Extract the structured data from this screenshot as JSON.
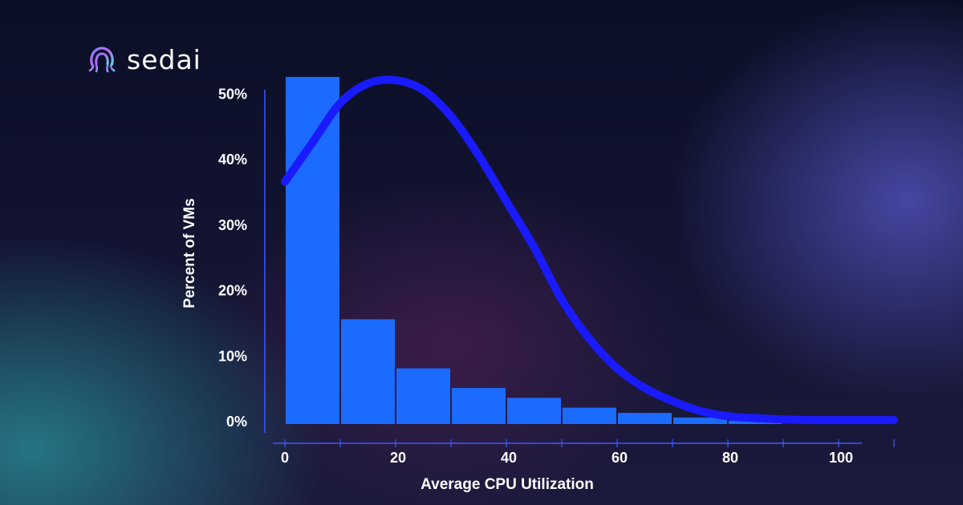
{
  "brand": {
    "name": "sedai",
    "logo_icon": "sedai-octopus-icon"
  },
  "colors": {
    "bar": "#1c6bff",
    "curve": "#1a1aff",
    "axis": "#3a5bff",
    "text": "#ffffff"
  },
  "chart_data": {
    "type": "bar",
    "xlabel": "Average CPU Utilization",
    "ylabel": "Percent of VMs",
    "xlim": [
      0,
      110
    ],
    "ylim": [
      0,
      53
    ],
    "x_ticks": [
      0,
      20,
      40,
      60,
      80,
      100
    ],
    "x_tick_labels": [
      "0",
      "20",
      "40",
      "60",
      "80",
      "100"
    ],
    "y_ticks": [
      0,
      10,
      20,
      30,
      40,
      50
    ],
    "y_tick_labels": [
      "0%",
      "10%",
      "20%",
      "30%",
      "40%",
      "50%"
    ],
    "bin_width": 10,
    "bins": [
      {
        "start": 0,
        "end": 10,
        "value": 53
      },
      {
        "start": 10,
        "end": 20,
        "value": 16
      },
      {
        "start": 20,
        "end": 30,
        "value": 8.5
      },
      {
        "start": 30,
        "end": 40,
        "value": 5.5
      },
      {
        "start": 40,
        "end": 50,
        "value": 4
      },
      {
        "start": 50,
        "end": 60,
        "value": 2.5
      },
      {
        "start": 60,
        "end": 70,
        "value": 1.7
      },
      {
        "start": 70,
        "end": 80,
        "value": 1
      },
      {
        "start": 80,
        "end": 90,
        "value": 0.5
      }
    ],
    "curve": {
      "type": "line",
      "x": [
        0,
        5,
        10,
        15,
        20,
        25,
        30,
        35,
        40,
        45,
        50,
        55,
        60,
        65,
        70,
        75,
        80,
        85,
        90,
        95,
        100,
        105,
        110
      ],
      "y": [
        37,
        43,
        49,
        52,
        52.5,
        51,
        47,
        41,
        34,
        27,
        19,
        13,
        8.5,
        5.5,
        3.5,
        2,
        1.2,
        0.9,
        0.7,
        0.6,
        0.6,
        0.6,
        0.6
      ]
    },
    "grid": false,
    "legend": "none"
  }
}
